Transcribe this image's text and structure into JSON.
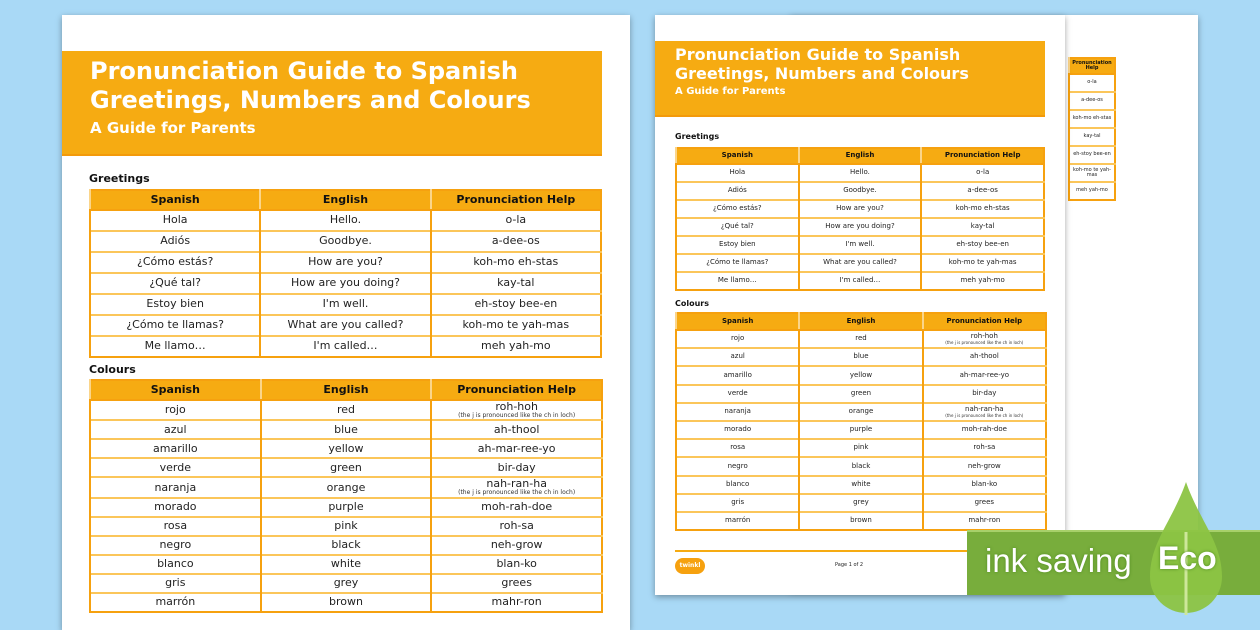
{
  "document": {
    "title_line1": "Pronunciation Guide to Spanish",
    "title_line2": "Greetings, Numbers and Colours",
    "subtitle": "A Guide for Parents",
    "greetings_label": "Greetings",
    "colours_label": "Colours",
    "headers": [
      "Spanish",
      "English",
      "Pronunciation Help"
    ],
    "greetings": [
      [
        "Hola",
        "Hello.",
        "o-la",
        ""
      ],
      [
        "Adiós",
        "Goodbye.",
        "a-dee-os",
        ""
      ],
      [
        "¿Cómo estás?",
        "How are you?",
        "koh-mo eh-stas",
        ""
      ],
      [
        "¿Qué tal?",
        "How are you doing?",
        "kay-tal",
        ""
      ],
      [
        "Estoy bien",
        "I'm well.",
        "eh-stoy bee-en",
        ""
      ],
      [
        "¿Cómo te llamas?",
        "What are you called?",
        "koh-mo te yah-mas",
        ""
      ],
      [
        "Me llamo…",
        "I'm called…",
        "meh yah-mo",
        ""
      ]
    ],
    "colours": [
      [
        "rojo",
        "red",
        "roh-hoh",
        "(the j is pronounced like the ch in loch)"
      ],
      [
        "azul",
        "blue",
        "ah-thool",
        ""
      ],
      [
        "amarillo",
        "yellow",
        "ah-mar-ree-yo",
        ""
      ],
      [
        "verde",
        "green",
        "bir-day",
        ""
      ],
      [
        "naranja",
        "orange",
        "nah-ran-ha",
        "(the j is pronounced like the ch in loch)"
      ],
      [
        "morado",
        "purple",
        "moh-rah-doe",
        ""
      ],
      [
        "rosa",
        "pink",
        "roh-sa",
        ""
      ],
      [
        "negro",
        "black",
        "neh-grow",
        ""
      ],
      [
        "blanco",
        "white",
        "blan-ko",
        ""
      ],
      [
        "gris",
        "grey",
        "grees",
        ""
      ],
      [
        "marrón",
        "brown",
        "mahr-ron",
        ""
      ]
    ],
    "footer_page": "Page 1 of 2",
    "logo_text": "twinkl"
  },
  "badge": {
    "label": "ink saving",
    "eco": "Eco"
  },
  "colors": {
    "background": "#a9d9f6",
    "accent": "#f6ab12",
    "eco_green": "#78ad3c"
  }
}
